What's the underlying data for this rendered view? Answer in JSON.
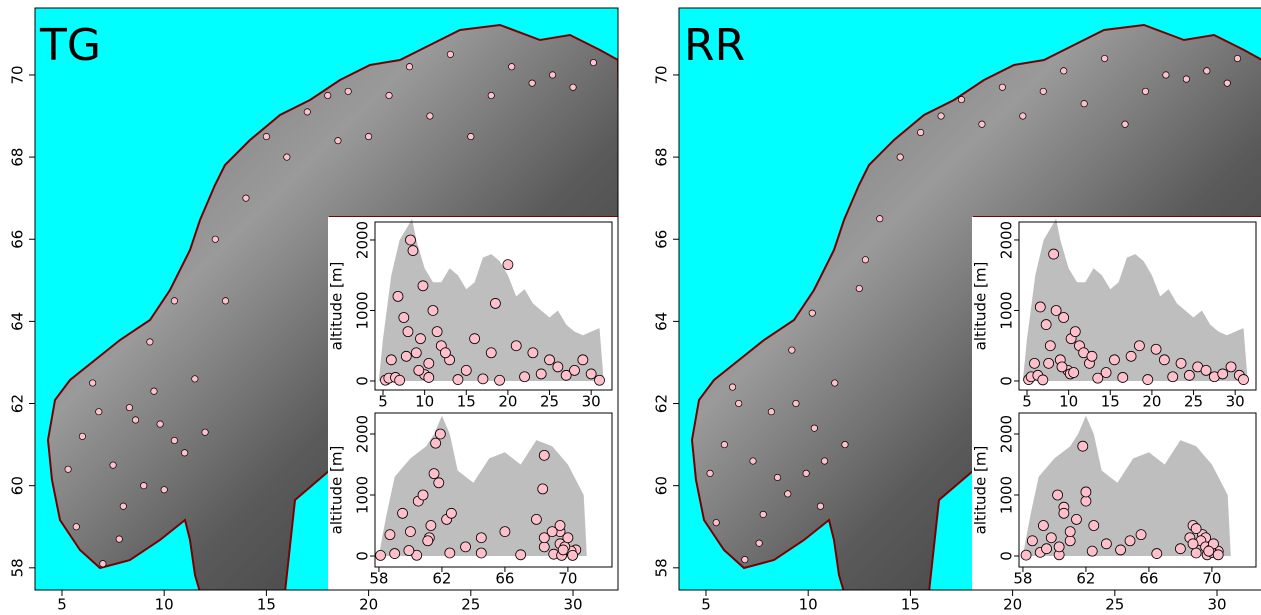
{
  "chart_data": [
    {
      "type": "map",
      "label": "TG",
      "sea_color": "#00ffff",
      "point_color": "#ffc0cb",
      "profile_color": "#bebebe",
      "xlim": [
        3.68,
        32.2
      ],
      "ylim": [
        57.46,
        71.63
      ],
      "xticks": [
        5,
        10,
        15,
        20,
        25,
        30
      ],
      "yticks": [
        58,
        60,
        62,
        64,
        66,
        68,
        70
      ],
      "stations": {
        "lon": [
          5.3,
          5.7,
          6.0,
          6.5,
          7.0,
          7.5,
          8.0,
          8.3,
          8.6,
          9.0,
          9.5,
          10.0,
          10.5,
          11.0,
          11.5,
          12.0,
          13.0,
          14.0,
          15.0,
          16.0,
          17.0,
          18.0,
          18.5,
          19.0,
          20.0,
          21.0,
          22.0,
          23.0,
          24.0,
          25.0,
          26.0,
          27.0,
          28.0,
          29.0,
          30.0,
          31.0,
          9.3,
          10.5,
          12.5,
          7.8,
          6.8,
          9.8
        ],
        "lat": [
          60.4,
          59.0,
          61.2,
          62.5,
          58.1,
          60.5,
          59.5,
          61.9,
          61.6,
          60.0,
          62.3,
          59.9,
          61.1,
          60.8,
          62.6,
          61.3,
          64.5,
          67.0,
          68.5,
          68.0,
          69.1,
          69.5,
          68.4,
          69.6,
          68.5,
          69.5,
          70.2,
          69.0,
          70.5,
          68.5,
          69.5,
          70.2,
          69.8,
          70.0,
          69.7,
          70.3,
          63.5,
          64.5,
          66.0,
          58.7,
          61.8,
          61.5
        ],
        "alt": [
          12,
          40,
          300,
          50,
          10,
          900,
          700,
          2000,
          1850,
          400,
          600,
          90,
          250,
          1000,
          700,
          500,
          300,
          20,
          150,
          600,
          30,
          400,
          1100,
          10,
          1650,
          500,
          60,
          400,
          100,
          300,
          200,
          80,
          150,
          300,
          100,
          10,
          150,
          50,
          400,
          350,
          1200,
          1350
        ]
      },
      "inset_lon": {
        "ylabel": "altitude [m]",
        "xlim": [
          4.04,
          32.5
        ],
        "ylim": [
          -128,
          2255
        ],
        "xticks": [
          5,
          10,
          15,
          20,
          25,
          30
        ],
        "yticks": [
          0,
          1000,
          2000
        ],
        "profile": {
          "x": [
            4.5,
            5,
            6,
            7,
            8,
            8.5,
            9,
            10,
            11,
            12,
            13,
            14,
            15,
            16,
            17,
            18,
            19,
            20,
            21,
            22,
            23,
            24,
            25,
            26,
            27,
            28,
            29,
            30,
            31,
            31.5
          ],
          "values": [
            0,
            600,
            1500,
            2000,
            2200,
            2300,
            2000,
            1600,
            1400,
            1400,
            1600,
            1500,
            1300,
            1400,
            1750,
            1800,
            1700,
            1500,
            1200,
            1300,
            1100,
            1000,
            900,
            1000,
            800,
            700,
            650,
            700,
            750,
            0
          ]
        }
      },
      "inset_lat": {
        "ylabel": "altitude [m]",
        "xlim": [
          57.75,
          72.8
        ],
        "ylim": [
          -180,
          2344
        ],
        "xticks": [
          58,
          62,
          66,
          70
        ],
        "yticks": [
          0,
          1000,
          2000
        ],
        "profile": {
          "x": [
            58,
            58.2,
            58.5,
            59,
            60,
            61,
            61.5,
            62,
            62.5,
            63,
            64,
            65,
            66,
            67,
            68,
            69,
            70,
            71,
            71.2
          ],
          "values": [
            0,
            300,
            700,
            1300,
            1600,
            1800,
            2000,
            2300,
            2000,
            1400,
            1200,
            1600,
            1700,
            1500,
            1900,
            1800,
            1500,
            1000,
            0
          ]
        }
      }
    },
    {
      "type": "map",
      "label": "RR",
      "sea_color": "#00ffff",
      "point_color": "#ffc0cb",
      "profile_color": "#bebebe",
      "xlim": [
        3.68,
        32.2
      ],
      "ylim": [
        57.46,
        71.63
      ],
      "xticks": [
        5,
        10,
        15,
        20,
        25,
        30
      ],
      "yticks": [
        58,
        60,
        62,
        64,
        66,
        68,
        70
      ],
      "stations": {
        "lon": [
          5.2,
          5.5,
          5.9,
          6.3,
          6.9,
          7.3,
          7.8,
          8.2,
          8.5,
          9.0,
          9.4,
          9.9,
          10.3,
          10.8,
          11.3,
          11.8,
          12.5,
          13.5,
          14.5,
          15.5,
          16.5,
          17.5,
          18.5,
          19.5,
          20.5,
          21.5,
          22.5,
          23.5,
          24.5,
          25.5,
          26.5,
          27.5,
          28.5,
          29.5,
          30.5,
          31.0,
          9.2,
          10.2,
          12.8,
          7.6,
          6.6,
          10.6
        ],
        "lat": [
          60.3,
          59.1,
          61.0,
          62.4,
          58.2,
          60.6,
          59.3,
          61.8,
          60.2,
          59.8,
          62.0,
          60.3,
          61.4,
          60.6,
          62.5,
          61.0,
          64.8,
          66.5,
          68.0,
          68.6,
          69.0,
          69.4,
          68.8,
          69.7,
          69.0,
          69.6,
          70.1,
          69.3,
          70.4,
          68.8,
          69.6,
          70.0,
          69.9,
          70.1,
          69.8,
          70.4,
          63.3,
          64.2,
          65.5,
          58.6,
          62.0,
          59.5
        ],
        "alt": [
          20,
          60,
          250,
          80,
          15,
          800,
          500,
          1800,
          1000,
          300,
          900,
          150,
          600,
          700,
          500,
          400,
          250,
          40,
          120,
          300,
          50,
          350,
          500,
          20,
          450,
          300,
          60,
          250,
          80,
          200,
          150,
          60,
          100,
          200,
          80,
          20,
          200,
          100,
          350,
          250,
          1050,
          120
        ]
      },
      "inset_lon": {
        "ylabel": "altitude [m]",
        "xlim": [
          4.04,
          32.5
        ],
        "ylim": [
          -128,
          2255
        ],
        "xticks": [
          5,
          10,
          15,
          20,
          25,
          30
        ],
        "yticks": [
          0,
          1000,
          2000
        ],
        "profile": {
          "x": [
            4.5,
            5,
            6,
            7,
            8,
            8.5,
            9,
            10,
            11,
            12,
            13,
            14,
            15,
            16,
            17,
            18,
            19,
            20,
            21,
            22,
            23,
            24,
            25,
            26,
            27,
            28,
            29,
            30,
            31,
            31.5
          ],
          "values": [
            0,
            600,
            1500,
            2000,
            2200,
            2300,
            2000,
            1600,
            1400,
            1400,
            1600,
            1500,
            1300,
            1400,
            1750,
            1800,
            1700,
            1500,
            1200,
            1300,
            1100,
            1000,
            900,
            1000,
            800,
            700,
            650,
            700,
            750,
            0
          ]
        }
      },
      "inset_lat": {
        "ylabel": "altitude [m]",
        "xlim": [
          57.75,
          72.8
        ],
        "ylim": [
          -180,
          2344
        ],
        "xticks": [
          58,
          62,
          66,
          70
        ],
        "yticks": [
          0,
          1000,
          2000
        ],
        "profile": {
          "x": [
            58,
            58.2,
            58.5,
            59,
            60,
            61,
            61.5,
            62,
            62.5,
            63,
            64,
            65,
            66,
            67,
            68,
            69,
            70,
            71,
            71.2
          ],
          "values": [
            0,
            300,
            700,
            1300,
            1600,
            1800,
            2000,
            2300,
            2000,
            1400,
            1200,
            1600,
            1700,
            1500,
            1900,
            1800,
            1500,
            1000,
            0
          ]
        }
      }
    }
  ]
}
